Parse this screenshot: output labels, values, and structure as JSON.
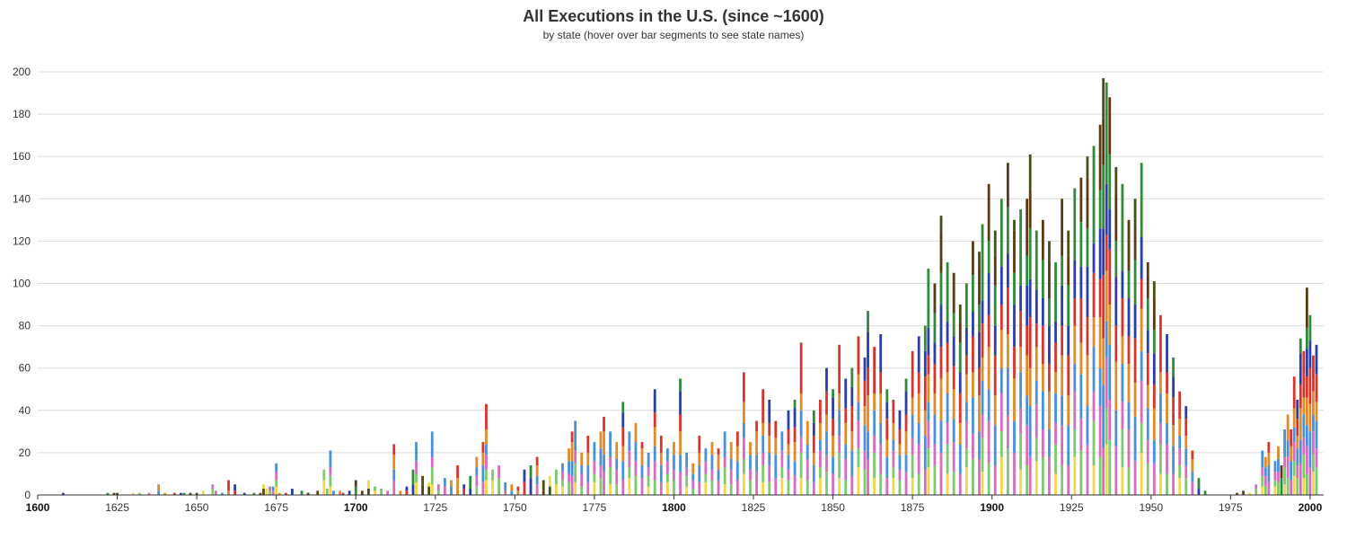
{
  "chart_data": {
    "type": "bar",
    "stacked": true,
    "title": "All Executions in the U.S. (since ~1600)",
    "subtitle": "by state (hover over bar segments to see state names)",
    "xlabel": "",
    "ylabel": "",
    "xlim": [
      1600,
      2002
    ],
    "ylim": [
      0,
      200
    ],
    "grid": true,
    "legend": "none",
    "x_ticks": [
      {
        "label": "1600",
        "value": 1600,
        "major": true
      },
      {
        "label": "1625",
        "value": 1625,
        "major": false
      },
      {
        "label": "1650",
        "value": 1650,
        "major": false
      },
      {
        "label": "1675",
        "value": 1675,
        "major": false
      },
      {
        "label": "1700",
        "value": 1700,
        "major": true
      },
      {
        "label": "1725",
        "value": 1725,
        "major": false
      },
      {
        "label": "1750",
        "value": 1750,
        "major": false
      },
      {
        "label": "1775",
        "value": 1775,
        "major": false
      },
      {
        "label": "1800",
        "value": 1800,
        "major": true
      },
      {
        "label": "1825",
        "value": 1825,
        "major": false
      },
      {
        "label": "1850",
        "value": 1850,
        "major": false
      },
      {
        "label": "1875",
        "value": 1875,
        "major": false
      },
      {
        "label": "1900",
        "value": 1900,
        "major": true
      },
      {
        "label": "1925",
        "value": 1925,
        "major": false
      },
      {
        "label": "1950",
        "value": 1950,
        "major": false
      },
      {
        "label": "1975",
        "value": 1975,
        "major": false
      },
      {
        "label": "2000",
        "value": 2000,
        "major": true
      }
    ],
    "y_ticks": [
      0,
      20,
      40,
      60,
      80,
      100,
      120,
      140,
      160,
      180,
      200
    ],
    "palette": [
      "#f2d64b",
      "#7ec86e",
      "#d66cc0",
      "#4a90d9",
      "#e08a28",
      "#d9342b",
      "#2b3ea8",
      "#2f8a3a",
      "#5a3a12",
      "#4a4d14"
    ],
    "totals": [
      [
        1608,
        1
      ],
      [
        1622,
        1
      ],
      [
        1624,
        1
      ],
      [
        1625,
        1
      ],
      [
        1630,
        1
      ],
      [
        1632,
        1
      ],
      [
        1635,
        1
      ],
      [
        1638,
        5
      ],
      [
        1640,
        1
      ],
      [
        1643,
        1
      ],
      [
        1645,
        1
      ],
      [
        1646,
        1
      ],
      [
        1648,
        1
      ],
      [
        1650,
        1
      ],
      [
        1652,
        2
      ],
      [
        1655,
        5
      ],
      [
        1656,
        2
      ],
      [
        1658,
        1
      ],
      [
        1660,
        7
      ],
      [
        1662,
        5
      ],
      [
        1665,
        1
      ],
      [
        1668,
        1
      ],
      [
        1670,
        1
      ],
      [
        1671,
        5
      ],
      [
        1672,
        3
      ],
      [
        1673,
        4
      ],
      [
        1674,
        4
      ],
      [
        1675,
        15
      ],
      [
        1676,
        1
      ],
      [
        1678,
        1
      ],
      [
        1680,
        3
      ],
      [
        1683,
        2
      ],
      [
        1685,
        1
      ],
      [
        1688,
        2
      ],
      [
        1690,
        12
      ],
      [
        1691,
        3
      ],
      [
        1692,
        21
      ],
      [
        1693,
        2
      ],
      [
        1695,
        2
      ],
      [
        1696,
        1
      ],
      [
        1698,
        2
      ],
      [
        1700,
        7
      ],
      [
        1702,
        2
      ],
      [
        1704,
        7
      ],
      [
        1706,
        4
      ],
      [
        1708,
        3
      ],
      [
        1710,
        2
      ],
      [
        1712,
        24
      ],
      [
        1714,
        2
      ],
      [
        1716,
        4
      ],
      [
        1718,
        12
      ],
      [
        1719,
        25
      ],
      [
        1721,
        9
      ],
      [
        1723,
        6
      ],
      [
        1724,
        30
      ],
      [
        1726,
        5
      ],
      [
        1728,
        8
      ],
      [
        1730,
        7
      ],
      [
        1732,
        14
      ],
      [
        1734,
        5
      ],
      [
        1736,
        9
      ],
      [
        1738,
        18
      ],
      [
        1740,
        25
      ],
      [
        1741,
        43
      ],
      [
        1743,
        12
      ],
      [
        1745,
        14
      ],
      [
        1747,
        6
      ],
      [
        1749,
        5
      ],
      [
        1751,
        4
      ],
      [
        1753,
        12
      ],
      [
        1755,
        14
      ],
      [
        1757,
        18
      ],
      [
        1759,
        7
      ],
      [
        1761,
        9
      ],
      [
        1763,
        12
      ],
      [
        1765,
        15
      ],
      [
        1767,
        22
      ],
      [
        1768,
        30
      ],
      [
        1769,
        35
      ],
      [
        1771,
        20
      ],
      [
        1773,
        28
      ],
      [
        1775,
        25
      ],
      [
        1777,
        30
      ],
      [
        1778,
        37
      ],
      [
        1780,
        30
      ],
      [
        1782,
        25
      ],
      [
        1784,
        44
      ],
      [
        1786,
        30
      ],
      [
        1788,
        34
      ],
      [
        1790,
        25
      ],
      [
        1792,
        20
      ],
      [
        1794,
        50
      ],
      [
        1796,
        28
      ],
      [
        1798,
        22
      ],
      [
        1800,
        25
      ],
      [
        1802,
        55
      ],
      [
        1804,
        20
      ],
      [
        1806,
        15
      ],
      [
        1808,
        28
      ],
      [
        1810,
        22
      ],
      [
        1812,
        25
      ],
      [
        1814,
        22
      ],
      [
        1816,
        30
      ],
      [
        1818,
        25
      ],
      [
        1820,
        30
      ],
      [
        1822,
        58
      ],
      [
        1824,
        25
      ],
      [
        1826,
        35
      ],
      [
        1828,
        50
      ],
      [
        1830,
        45
      ],
      [
        1832,
        35
      ],
      [
        1834,
        30
      ],
      [
        1836,
        40
      ],
      [
        1838,
        45
      ],
      [
        1840,
        72
      ],
      [
        1842,
        35
      ],
      [
        1844,
        40
      ],
      [
        1846,
        45
      ],
      [
        1848,
        60
      ],
      [
        1850,
        50
      ],
      [
        1852,
        71
      ],
      [
        1854,
        55
      ],
      [
        1856,
        60
      ],
      [
        1858,
        75
      ],
      [
        1860,
        65
      ],
      [
        1861,
        87
      ],
      [
        1863,
        70
      ],
      [
        1865,
        76
      ],
      [
        1867,
        50
      ],
      [
        1869,
        45
      ],
      [
        1871,
        40
      ],
      [
        1873,
        55
      ],
      [
        1875,
        68
      ],
      [
        1877,
        75
      ],
      [
        1879,
        80
      ],
      [
        1880,
        107
      ],
      [
        1882,
        100
      ],
      [
        1884,
        132
      ],
      [
        1886,
        110
      ],
      [
        1888,
        105
      ],
      [
        1890,
        90
      ],
      [
        1892,
        100
      ],
      [
        1894,
        120
      ],
      [
        1896,
        115
      ],
      [
        1897,
        128
      ],
      [
        1899,
        147
      ],
      [
        1901,
        125
      ],
      [
        1903,
        140
      ],
      [
        1905,
        157
      ],
      [
        1907,
        130
      ],
      [
        1909,
        135
      ],
      [
        1911,
        140
      ],
      [
        1912,
        161
      ],
      [
        1914,
        125
      ],
      [
        1916,
        130
      ],
      [
        1918,
        120
      ],
      [
        1920,
        110
      ],
      [
        1922,
        140
      ],
      [
        1924,
        125
      ],
      [
        1926,
        145
      ],
      [
        1928,
        150
      ],
      [
        1930,
        160
      ],
      [
        1932,
        165
      ],
      [
        1934,
        175
      ],
      [
        1935,
        197
      ],
      [
        1936,
        195
      ],
      [
        1937,
        188
      ],
      [
        1939,
        155
      ],
      [
        1941,
        147
      ],
      [
        1943,
        130
      ],
      [
        1945,
        140
      ],
      [
        1947,
        157
      ],
      [
        1949,
        110
      ],
      [
        1951,
        101
      ],
      [
        1953,
        85
      ],
      [
        1955,
        76
      ],
      [
        1957,
        65
      ],
      [
        1959,
        49
      ],
      [
        1961,
        42
      ],
      [
        1963,
        21
      ],
      [
        1965,
        8
      ],
      [
        1967,
        2
      ],
      [
        1977,
        1
      ],
      [
        1979,
        2
      ],
      [
        1981,
        1
      ],
      [
        1983,
        5
      ],
      [
        1985,
        21
      ],
      [
        1986,
        18
      ],
      [
        1987,
        25
      ],
      [
        1989,
        16
      ],
      [
        1990,
        23
      ],
      [
        1991,
        14
      ],
      [
        1992,
        31
      ],
      [
        1993,
        38
      ],
      [
        1994,
        31
      ],
      [
        1995,
        56
      ],
      [
        1996,
        45
      ],
      [
        1997,
        74
      ],
      [
        1998,
        68
      ],
      [
        1999,
        98
      ],
      [
        2000,
        85
      ],
      [
        2001,
        66
      ],
      [
        2002,
        71
      ]
    ]
  }
}
